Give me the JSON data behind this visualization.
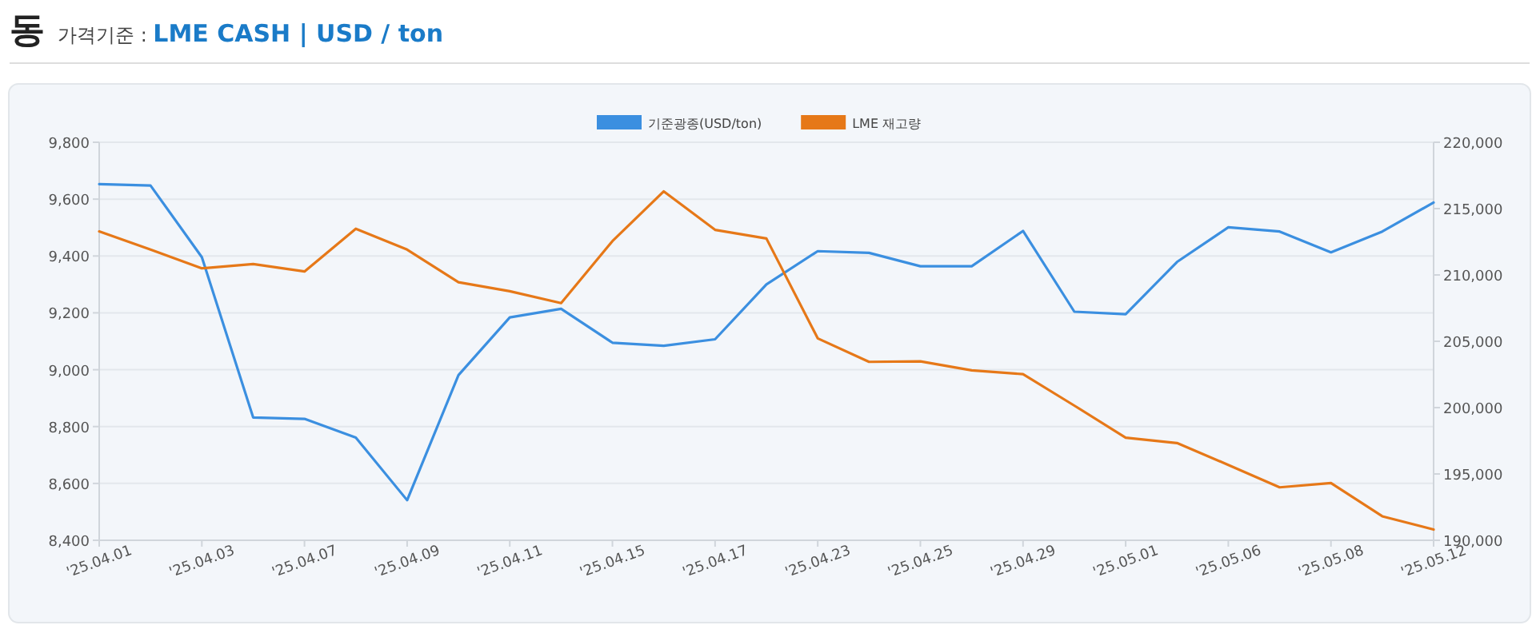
{
  "chart_data": {
    "type": "line",
    "title": "동",
    "subtitle": "가격기준 : **LME CASH | USD / ton**",
    "categories": [
      "'25.04.01",
      null,
      "'25.04.03",
      null,
      "'25.04.07",
      null,
      "'25.04.09",
      null,
      "'25.04.11",
      null,
      "'25.04.15",
      null,
      "'25.04.17",
      null,
      "'25.04.23",
      null,
      "'25.04.25",
      null,
      "'25.04.29",
      null,
      "'25.05.01",
      null,
      "'25.05.06",
      null,
      "'25.05.08",
      null,
      "'25.05.12"
    ],
    "series": [
      {
        "name": "기준광종(USD/ton)",
        "color": "#3b8fe0",
        "values": [
          9653,
          9648,
          9396,
          8832,
          8827,
          8761,
          8541,
          8981,
          9184,
          9214,
          9095,
          9084,
          9107,
          9300,
          9417,
          9411,
          9364,
          9364,
          9488,
          9204,
          9195,
          9379,
          9501,
          9486,
          9413,
          9486,
          9588
        ]
      },
      {
        "name": "LME 재고량",
        "color": "#e67818",
        "axis": "y2",
        "values": [
          213280,
          211910,
          210500,
          210820,
          210260,
          213480,
          211910,
          209450,
          208770,
          207880,
          212550,
          216300,
          213400,
          212750,
          205220,
          203450,
          203490,
          202810,
          202520,
          200150,
          197730,
          197330,
          195680,
          193990,
          194310,
          191810,
          190810
        ]
      }
    ],
    "ylim": [
      8400,
      9800
    ],
    "yticks": [
      {
        "value": 8400,
        "label": "8,400"
      },
      {
        "value": 8600,
        "label": "8,600"
      },
      {
        "value": 8800,
        "label": "8,800"
      },
      {
        "value": 9000,
        "label": "9,000"
      },
      {
        "value": 9200,
        "label": "9,200"
      },
      {
        "value": 9400,
        "label": "9,400"
      },
      {
        "value": 9600,
        "label": "9,600"
      },
      {
        "value": 9800,
        "label": "9,800"
      }
    ],
    "y2lim": [
      190000,
      220000
    ],
    "y2ticks": [
      {
        "value": 190000,
        "label": "190,000"
      },
      {
        "value": 195000,
        "label": "195,000"
      },
      {
        "value": 200000,
        "label": "200,000"
      },
      {
        "value": 205000,
        "label": "205,000"
      },
      {
        "value": 210000,
        "label": "210,000"
      },
      {
        "value": 215000,
        "label": "215,000"
      },
      {
        "value": 220000,
        "label": "220,000"
      }
    ],
    "grid": "y",
    "legend": "top",
    "marker": "none",
    "line_style": "solid"
  }
}
